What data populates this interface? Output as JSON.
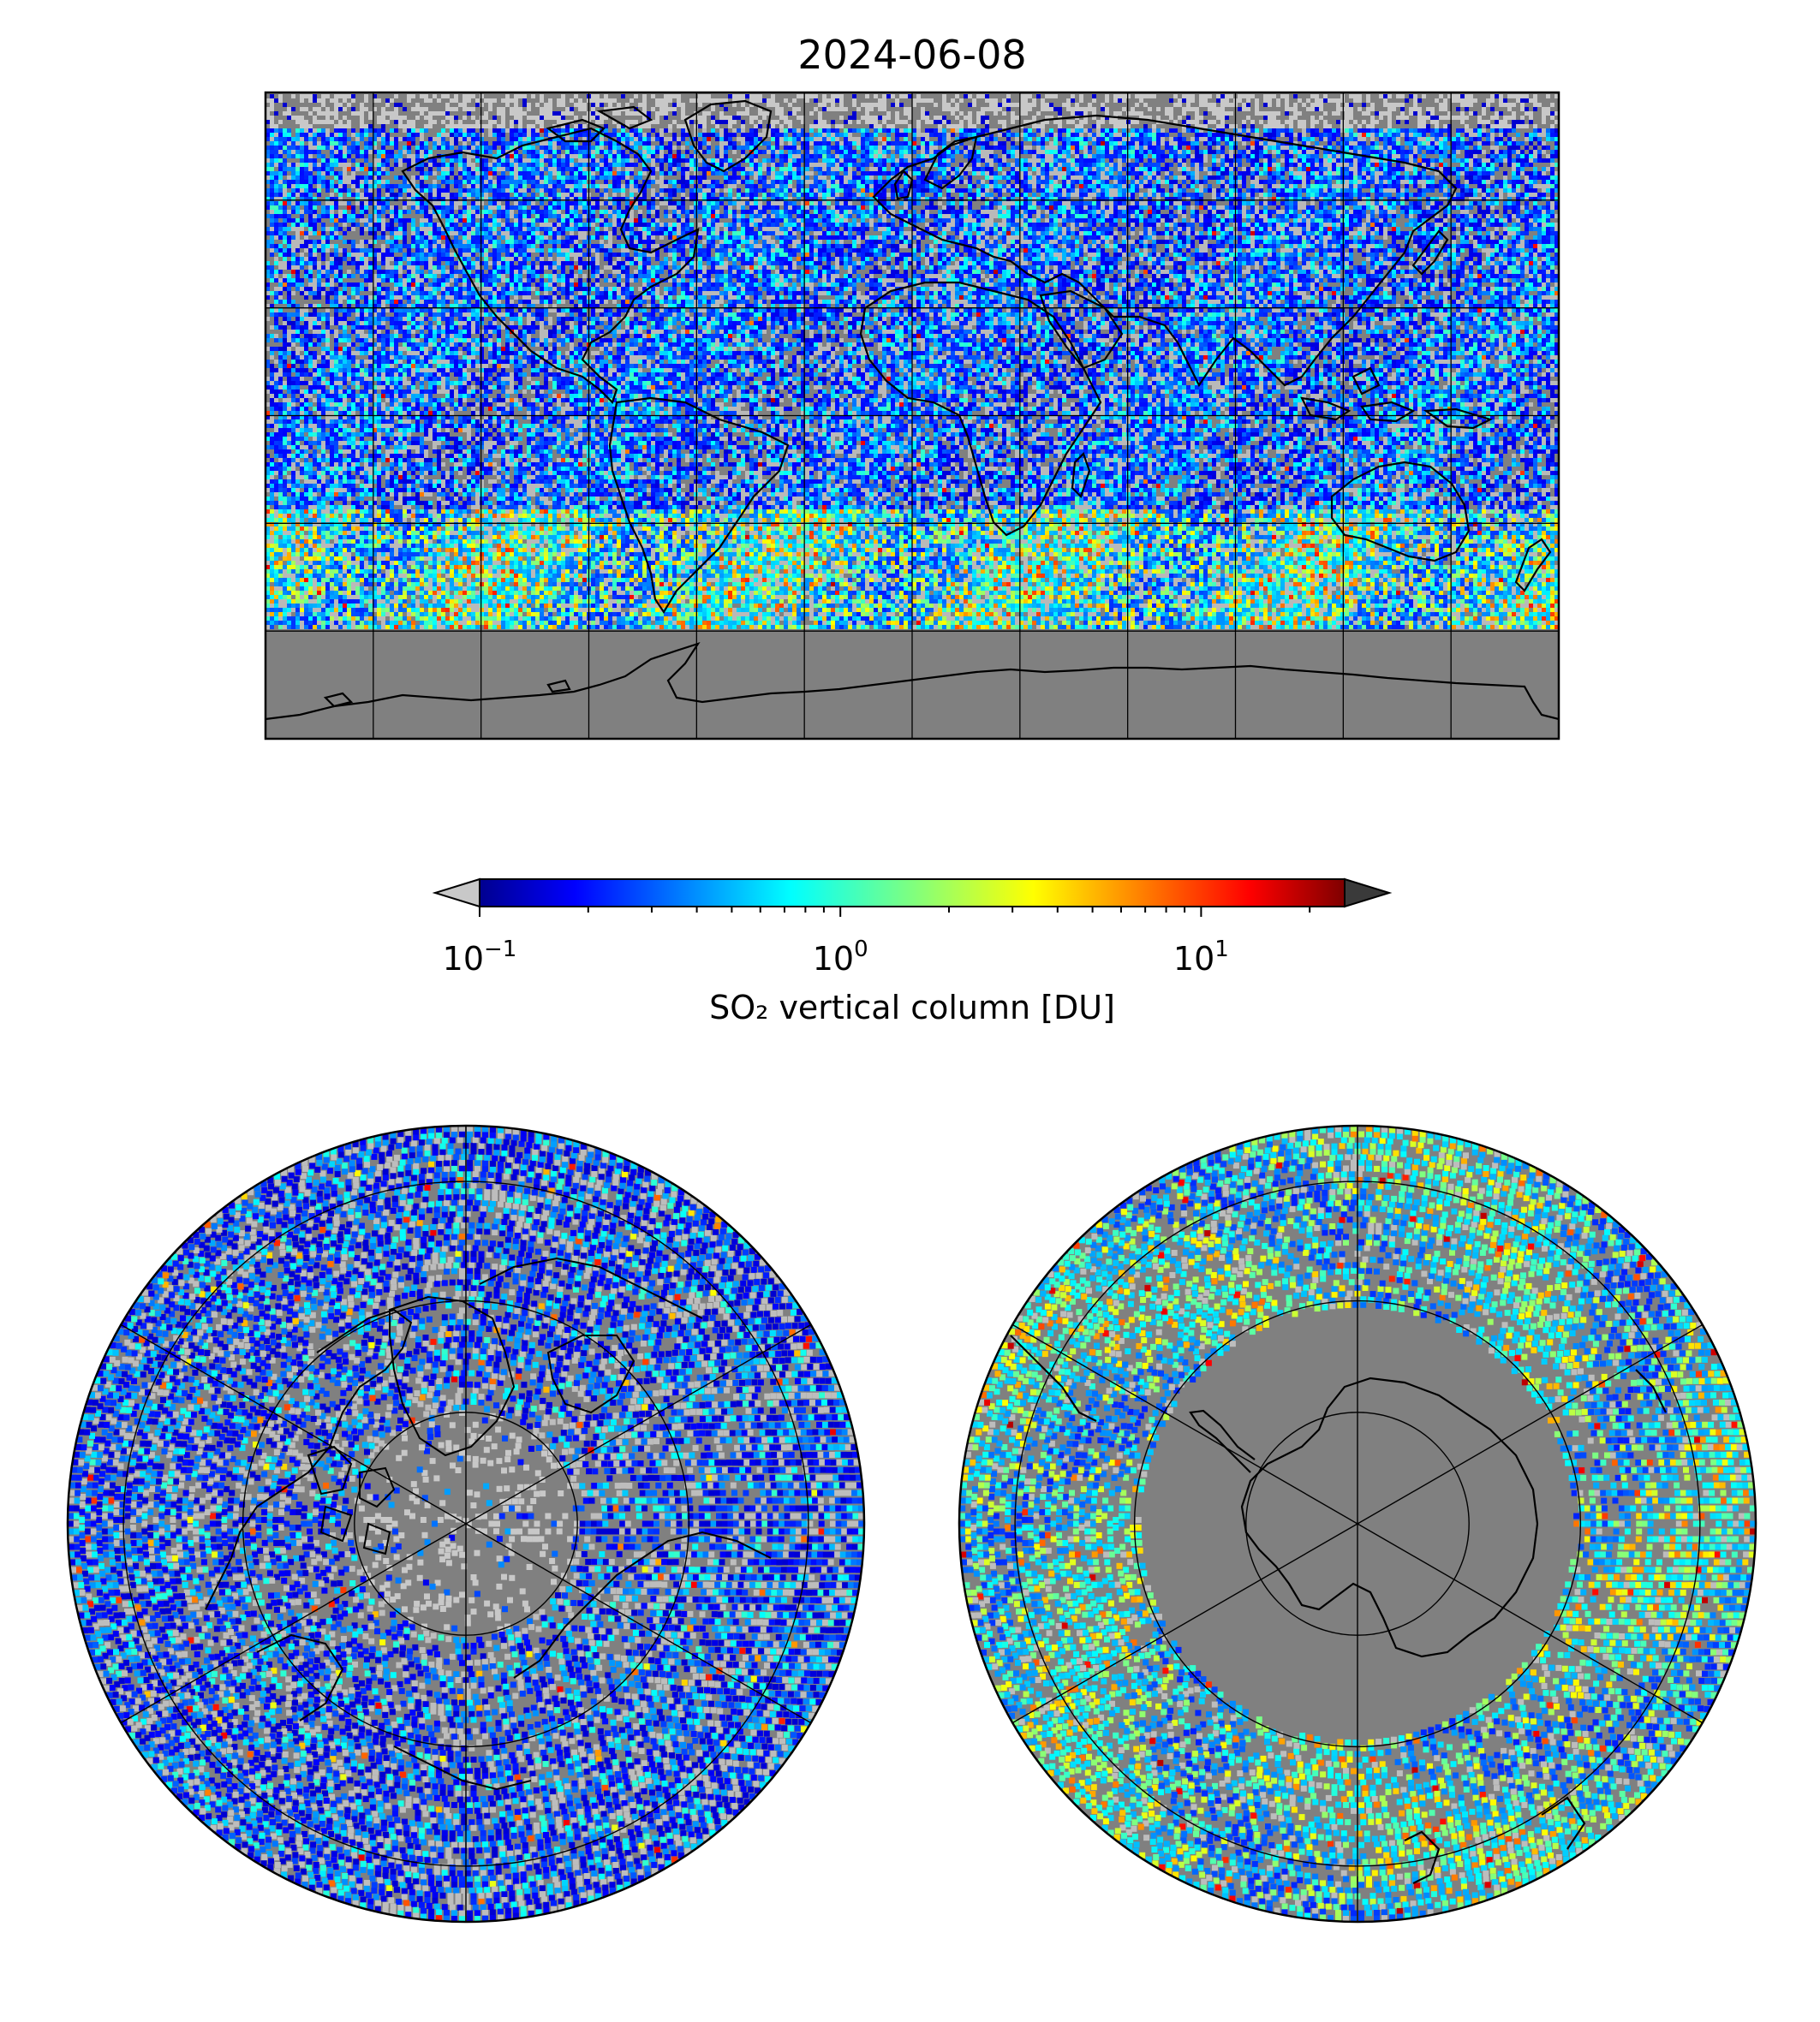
{
  "title": "2024-06-08",
  "colorbar": {
    "label": "SO₂ vertical column [DU]",
    "ticks": [
      {
        "base": "10",
        "exp": "−1",
        "value": 0.1
      },
      {
        "base": "10",
        "exp": "0",
        "value": 1
      },
      {
        "base": "10",
        "exp": "1",
        "value": 10
      }
    ],
    "range": [
      0.1,
      25
    ],
    "scale": "log",
    "colormap": "jet",
    "under_color": "#c8c8c8",
    "over_color": "#3a3a3a",
    "extend": "both"
  },
  "maps": [
    {
      "id": "global",
      "projection": "equirectangular",
      "gridlines_lon_deg": 30,
      "gridlines_lat_deg": 30,
      "background": "#808080"
    },
    {
      "id": "north-polar",
      "projection": "north-polar-stereographic",
      "background": "#808080"
    },
    {
      "id": "south-polar",
      "projection": "south-polar-stereographic",
      "background": "#808080"
    }
  ],
  "colors": {
    "no_data": "#808080",
    "low_value": "#c0c0c0",
    "coastline": "#000000"
  }
}
